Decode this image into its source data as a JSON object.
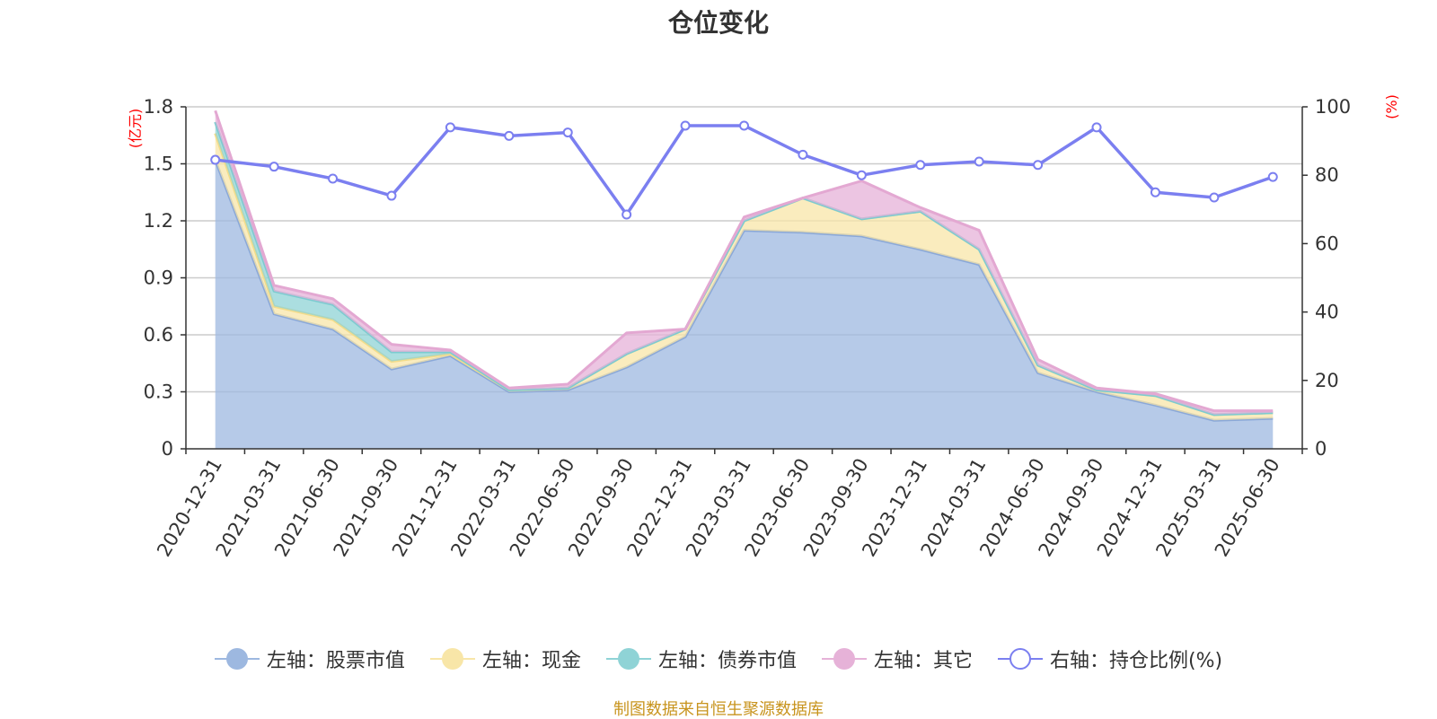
{
  "chart_data": {
    "type": "area",
    "title": "仓位变化",
    "categories": [
      "2020-12-31",
      "2021-03-31",
      "2021-06-30",
      "2021-09-30",
      "2021-12-31",
      "2022-03-31",
      "2022-06-30",
      "2022-09-30",
      "2022-12-31",
      "2023-03-31",
      "2023-06-30",
      "2023-09-30",
      "2023-12-31",
      "2024-03-31",
      "2024-06-30",
      "2024-09-30",
      "2024-12-31",
      "2025-03-31",
      "2025-06-30"
    ],
    "y_left": {
      "unit": "(亿元)",
      "ylim": [
        0,
        1.8
      ],
      "ticks": [
        "0",
        "0.3",
        "0.6",
        "0.9",
        "1.2",
        "1.5",
        "1.8"
      ]
    },
    "y_right": {
      "unit": "(%)",
      "ylim": [
        0,
        100
      ],
      "ticks": [
        "0",
        "20",
        "40",
        "60",
        "80",
        "100"
      ]
    },
    "series": [
      {
        "name": "左轴：股票市值",
        "axis": "left",
        "stack": true,
        "color": "#9db8e0",
        "values": [
          1.52,
          0.71,
          0.63,
          0.42,
          0.49,
          0.3,
          0.31,
          0.43,
          0.59,
          1.15,
          1.14,
          1.12,
          1.05,
          0.97,
          0.4,
          0.3,
          0.23,
          0.15,
          0.16
        ]
      },
      {
        "name": "左轴：现金",
        "axis": "left",
        "stack": true,
        "color": "#f8e6a8",
        "values": [
          0.14,
          0.04,
          0.05,
          0.04,
          0.01,
          0.01,
          0.01,
          0.07,
          0.04,
          0.05,
          0.18,
          0.09,
          0.2,
          0.08,
          0.04,
          0.01,
          0.05,
          0.03,
          0.03
        ]
      },
      {
        "name": "左轴：债券市值",
        "axis": "left",
        "stack": true,
        "color": "#8fd3d6",
        "values": [
          0.06,
          0.08,
          0.08,
          0.05,
          0.01,
          0,
          0,
          0,
          0,
          0,
          0,
          0,
          0,
          0,
          0,
          0,
          0,
          0,
          0
        ]
      },
      {
        "name": "左轴：其它",
        "axis": "left",
        "stack": true,
        "color": "#e6b2d8",
        "values": [
          0.06,
          0.03,
          0.03,
          0.04,
          0.01,
          0.01,
          0.02,
          0.11,
          0.0,
          0.02,
          0.0,
          0.2,
          0.02,
          0.1,
          0.03,
          0.01,
          0.01,
          0.02,
          0.01
        ]
      },
      {
        "name": "右轴：持仓比例(%)",
        "axis": "right",
        "stack": false,
        "color": "#7b7ff0",
        "values": [
          84.5,
          82.5,
          79,
          74,
          94,
          91.5,
          92.5,
          68.5,
          94.5,
          94.5,
          86,
          80,
          83,
          84,
          83,
          94,
          75,
          73.5,
          79.5
        ]
      }
    ],
    "source_note": "制图数据来自恒生聚源数据库",
    "grid": true,
    "legend_position": "bottom"
  }
}
